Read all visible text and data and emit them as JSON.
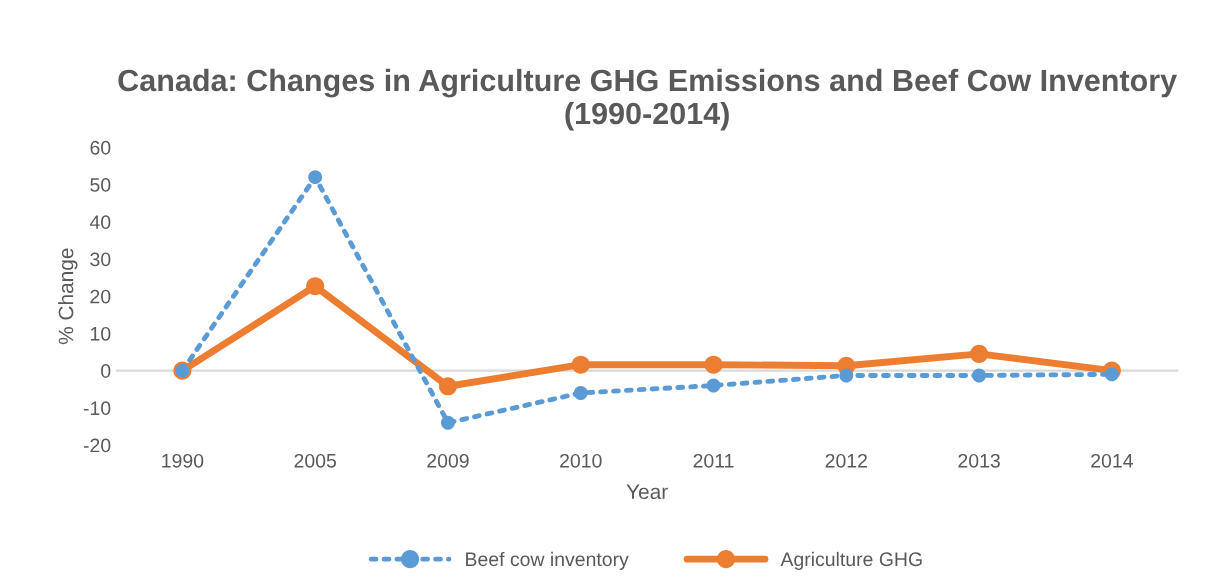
{
  "chart_data": {
    "type": "line",
    "title": "Canada: Changes in Agriculture GHG Emissions and Beef Cow Inventory (1990-2014)",
    "xlabel": "Year",
    "ylabel": "% Change",
    "categories": [
      "1990",
      "2005",
      "2009",
      "2010",
      "2011",
      "2012",
      "2013",
      "2014"
    ],
    "series": [
      {
        "name": "Beef cow inventory",
        "color": "#5b9bd5",
        "line_style": "dotted",
        "marker": "circle",
        "values": [
          0,
          52,
          -14,
          -6,
          -4,
          -1.3,
          -1.3,
          -1
        ]
      },
      {
        "name": "Agriculture GHG",
        "color": "#ed7d31",
        "line_style": "solid",
        "marker": "circle",
        "values": [
          0,
          22.7,
          -4.2,
          1.6,
          1.6,
          1.3,
          4.5,
          0
        ]
      }
    ],
    "ylim": [
      -20,
      60
    ],
    "yticks": [
      -20,
      -10,
      0,
      10,
      20,
      30,
      40,
      50,
      60
    ],
    "ref_lines": [
      {
        "axis": "y",
        "value": 0,
        "color": "#d9d9d9"
      }
    ],
    "grid": false,
    "legend": "bottom"
  }
}
